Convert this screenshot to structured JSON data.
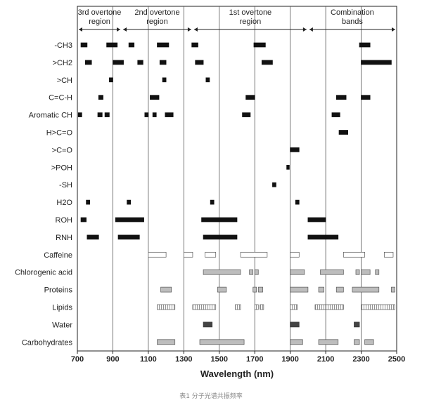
{
  "chart_data": {
    "type": "range-bar",
    "xlabel": "Wavelength (nm)",
    "xlim": [
      700,
      2500
    ],
    "x_ticks": [
      "700",
      "900",
      "1100",
      "1300",
      "1500",
      "1700",
      "1900",
      "2100",
      "2300",
      "2500"
    ],
    "vlines": [
      900,
      1100,
      1300,
      1500,
      1700,
      1900,
      2100,
      2300
    ],
    "regions": [
      {
        "line1": "3rd overtone",
        "line2": "region",
        "start": 700,
        "end": 950
      },
      {
        "line1": "2nd overtone",
        "line2": "region",
        "start": 950,
        "end": 1350
      },
      {
        "line1": "1st overtone",
        "line2": "region",
        "start": 1350,
        "end": 2000
      },
      {
        "line1": "Combination",
        "line2": "bands",
        "start": 2000,
        "end": 2500
      }
    ],
    "rows": [
      {
        "label": "-CH3",
        "style": "solid",
        "bands": [
          [
            720,
            755
          ],
          [
            865,
            925
          ],
          [
            990,
            1020
          ],
          [
            1150,
            1215
          ],
          [
            1345,
            1380
          ],
          [
            1695,
            1760
          ],
          [
            2290,
            2350
          ]
        ]
      },
      {
        "label": ">CH2",
        "style": "solid",
        "bands": [
          [
            745,
            780
          ],
          [
            900,
            960
          ],
          [
            1040,
            1070
          ],
          [
            1165,
            1200
          ],
          [
            1365,
            1410
          ],
          [
            1740,
            1800
          ],
          [
            2300,
            2470
          ]
        ]
      },
      {
        "label": ">CH",
        "style": "solid",
        "bands": [
          [
            880,
            900
          ],
          [
            1180,
            1200
          ],
          [
            1425,
            1445
          ]
        ]
      },
      {
        "label": "C=C-H",
        "style": "solid",
        "bands": [
          [
            820,
            845
          ],
          [
            1110,
            1160
          ],
          [
            1650,
            1700
          ],
          [
            2160,
            2215
          ],
          [
            2300,
            2350
          ]
        ]
      },
      {
        "label": "Aromatic CH",
        "style": "solid",
        "bands": [
          [
            705,
            725
          ],
          [
            815,
            840
          ],
          [
            855,
            880
          ],
          [
            1080,
            1100
          ],
          [
            1125,
            1145
          ],
          [
            1195,
            1240
          ],
          [
            1630,
            1675
          ],
          [
            2135,
            2180
          ]
        ]
      },
      {
        "label": "H>C=O",
        "style": "solid",
        "bands": [
          [
            2175,
            2225
          ]
        ]
      },
      {
        "label": ">C=O",
        "style": "solid",
        "bands": [
          [
            1900,
            1950
          ]
        ]
      },
      {
        "label": ">POH",
        "style": "solid",
        "bands": [
          [
            1880,
            1895
          ]
        ]
      },
      {
        "label": "-SH",
        "style": "solid",
        "bands": [
          [
            1800,
            1820
          ]
        ]
      },
      {
        "label": "H2O",
        "style": "solid",
        "bands": [
          [
            750,
            770
          ],
          [
            980,
            1000
          ],
          [
            1450,
            1470
          ],
          [
            1930,
            1950
          ]
        ]
      },
      {
        "label": "ROH",
        "style": "solid",
        "bands": [
          [
            720,
            750
          ],
          [
            915,
            1075
          ],
          [
            1400,
            1600
          ],
          [
            2000,
            2100
          ]
        ]
      },
      {
        "label": "RNH",
        "style": "solid",
        "bands": [
          [
            755,
            820
          ],
          [
            930,
            1050
          ],
          [
            1410,
            1600
          ],
          [
            2000,
            2170
          ]
        ]
      },
      {
        "label": "Caffeine",
        "style": "open",
        "bands": [
          [
            1100,
            1200
          ],
          [
            1300,
            1350
          ],
          [
            1420,
            1480
          ],
          [
            1620,
            1770
          ],
          [
            1900,
            1950
          ],
          [
            2200,
            2320
          ],
          [
            2430,
            2480
          ]
        ]
      },
      {
        "label": "Chlorogenic acid",
        "style": "gray",
        "bands": [
          [
            1410,
            1620
          ],
          [
            1670,
            1690
          ],
          [
            1700,
            1720
          ],
          [
            1900,
            1980
          ],
          [
            2070,
            2200
          ],
          [
            2270,
            2290
          ],
          [
            2300,
            2350
          ],
          [
            2380,
            2400
          ]
        ]
      },
      {
        "label": "Proteins",
        "style": "gray",
        "bands": [
          [
            1170,
            1230
          ],
          [
            1490,
            1540
          ],
          [
            1690,
            1710
          ],
          [
            1720,
            1745
          ],
          [
            1900,
            2000
          ],
          [
            2060,
            2090
          ],
          [
            2160,
            2200
          ],
          [
            2250,
            2400
          ],
          [
            2470,
            2490
          ]
        ]
      },
      {
        "label": "Lipids",
        "style": "hatch",
        "bands": [
          [
            1150,
            1250
          ],
          [
            1350,
            1480
          ],
          [
            1590,
            1620
          ],
          [
            1700,
            1720
          ],
          [
            1730,
            1750
          ],
          [
            1900,
            1940
          ],
          [
            2040,
            2100
          ],
          [
            2100,
            2200
          ],
          [
            2300,
            2490
          ]
        ]
      },
      {
        "label": "Water",
        "style": "dark",
        "bands": [
          [
            1410,
            1460
          ],
          [
            1900,
            1950
          ],
          [
            2260,
            2290
          ]
        ]
      },
      {
        "label": "Carbohydrates",
        "style": "gray",
        "bands": [
          [
            1150,
            1250
          ],
          [
            1390,
            1640
          ],
          [
            1900,
            1970
          ],
          [
            2060,
            2170
          ],
          [
            2260,
            2290
          ],
          [
            2320,
            2370
          ]
        ]
      }
    ]
  },
  "caption": "表1 分子光谱共振频率"
}
